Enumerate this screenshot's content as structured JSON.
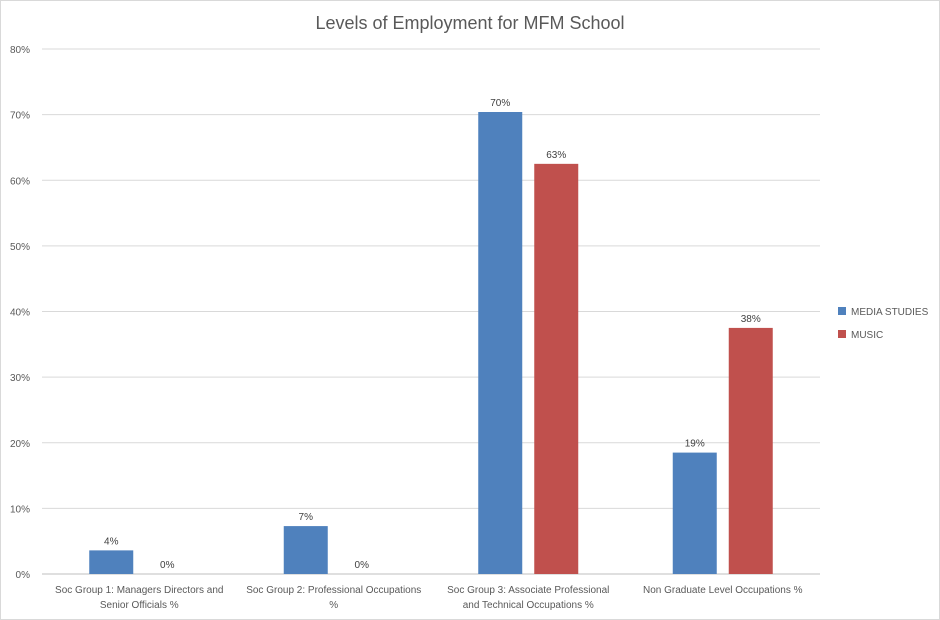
{
  "chart_data": {
    "type": "bar",
    "title": "Levels of Employment for MFM School",
    "xlabel": "",
    "ylabel": "",
    "ylim": [
      0,
      80
    ],
    "yticks": [
      0,
      10,
      20,
      30,
      40,
      50,
      60,
      70,
      80
    ],
    "ytick_labels": [
      "0%",
      "10%",
      "20%",
      "30%",
      "40%",
      "50%",
      "60%",
      "70%",
      "80%"
    ],
    "grid": true,
    "legend_position": "right",
    "categories": [
      [
        "Soc Group 1: Managers Directors and",
        "Senior Officials %"
      ],
      [
        "Soc Group 2: Professional Occupations",
        "%"
      ],
      [
        "Soc Group 3: Associate Professional",
        "and Technical Occupations %"
      ],
      [
        "Non Graduate Level Occupations %"
      ]
    ],
    "series": [
      {
        "name": "MEDIA STUDIES",
        "color": "#4f81bd",
        "values": [
          3.6,
          7.3,
          70.4,
          18.5
        ],
        "labels": [
          "4%",
          "7%",
          "70%",
          "19%"
        ]
      },
      {
        "name": "MUSIC",
        "color": "#c0504d",
        "values": [
          0,
          0,
          62.5,
          37.5
        ],
        "labels": [
          "0%",
          "0%",
          "63%",
          "38%"
        ]
      }
    ]
  }
}
